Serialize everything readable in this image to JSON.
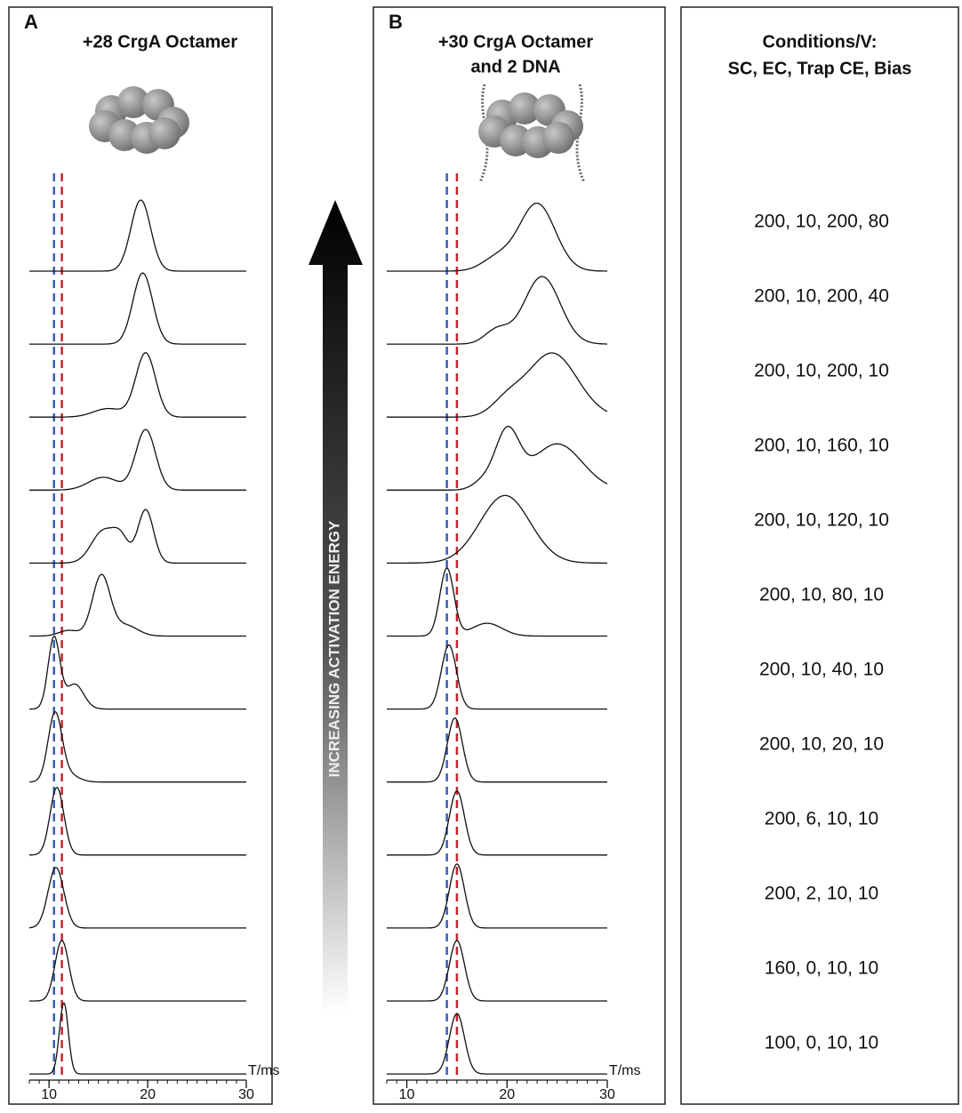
{
  "chart_data": [
    {
      "type": "ridgeline",
      "letter": "A",
      "title": [
        "+28 CrgA Octamer"
      ],
      "x_label": "T/ms",
      "xlim": [
        8,
        30
      ],
      "xticks": [
        10,
        20,
        30
      ],
      "reference_lines": [
        {
          "value": 10.5,
          "color": "#3a5fb0"
        },
        {
          "value": 11.3,
          "color": "#c0282d"
        }
      ],
      "traces": [
        {
          "peaks": [
            [
              19.3,
              1.0,
              1.0
            ]
          ]
        },
        {
          "peaks": [
            [
              19.5,
              1.0,
              1.0
            ]
          ]
        },
        {
          "peaks": [
            [
              19.8,
              0.9,
              1.0
            ],
            [
              16.0,
              0.12,
              1.5
            ]
          ]
        },
        {
          "peaks": [
            [
              19.8,
              0.85,
              1.0
            ],
            [
              15.5,
              0.18,
              1.5
            ]
          ]
        },
        {
          "peaks": [
            [
              15.5,
              0.45,
              1.2
            ],
            [
              17.3,
              0.3,
              0.8
            ],
            [
              19.8,
              0.75,
              0.8
            ]
          ]
        },
        {
          "peaks": [
            [
              15.3,
              0.85,
              0.9
            ],
            [
              17.8,
              0.15,
              1.2
            ],
            [
              12.0,
              0.08,
              1.0
            ]
          ]
        },
        {
          "peaks": [
            [
              10.5,
              1.0,
              0.6
            ],
            [
              12.6,
              0.35,
              0.9
            ]
          ]
        },
        {
          "peaks": [
            [
              10.6,
              0.95,
              0.7
            ],
            [
              12.0,
              0.1,
              1.0
            ]
          ]
        },
        {
          "peaks": [
            [
              10.8,
              0.95,
              0.7
            ]
          ]
        },
        {
          "peaks": [
            [
              10.7,
              0.85,
              0.8
            ]
          ]
        },
        {
          "peaks": [
            [
              11.3,
              0.85,
              0.7
            ]
          ]
        },
        {
          "peaks": [
            [
              11.5,
              1.0,
              0.45
            ]
          ]
        }
      ]
    },
    {
      "type": "ridgeline",
      "letter": "B",
      "title": [
        "+30 CrgA Octamer",
        "and 2 DNA"
      ],
      "x_label": "T/ms",
      "xlim": [
        8,
        30
      ],
      "xticks": [
        10,
        20,
        30
      ],
      "reference_lines": [
        {
          "value": 14.0,
          "color": "#3a5fb0"
        },
        {
          "value": 15.0,
          "color": "#c0282d"
        }
      ],
      "traces": [
        {
          "peaks": [
            [
              23.0,
              0.95,
              1.8
            ],
            [
              19.0,
              0.18,
              1.5
            ]
          ]
        },
        {
          "peaks": [
            [
              23.5,
              0.95,
              1.8
            ],
            [
              19.0,
              0.2,
              1.2
            ]
          ]
        },
        {
          "peaks": [
            [
              24.5,
              0.9,
              2.5
            ],
            [
              20.0,
              0.2,
              1.5
            ]
          ]
        },
        {
          "peaks": [
            [
              20.0,
              0.8,
              1.2
            ],
            [
              25.0,
              0.65,
              2.5
            ],
            [
              17.5,
              0.1,
              1.0
            ]
          ]
        },
        {
          "peaks": [
            [
              19.8,
              0.95,
              2.5
            ]
          ]
        },
        {
          "peaks": [
            [
              14.0,
              0.95,
              0.7
            ],
            [
              18.0,
              0.18,
              1.5
            ]
          ]
        },
        {
          "peaks": [
            [
              14.2,
              0.9,
              0.75
            ]
          ]
        },
        {
          "peaks": [
            [
              14.8,
              0.9,
              0.75
            ]
          ]
        },
        {
          "peaks": [
            [
              15.0,
              0.9,
              0.75
            ]
          ]
        },
        {
          "peaks": [
            [
              15.0,
              0.9,
              0.75
            ]
          ]
        },
        {
          "peaks": [
            [
              15.0,
              0.85,
              0.75
            ]
          ]
        },
        {
          "peaks": [
            [
              15.0,
              0.85,
              0.75
            ]
          ]
        }
      ]
    }
  ],
  "arrow_label": "INCREASING ACTIVATION ENERGY",
  "conditions": {
    "header": [
      "Conditions/V:",
      "SC, EC, Trap CE, Bias"
    ],
    "rows": [
      "200, 10, 200, 80",
      "200, 10, 200, 40",
      "200, 10, 200, 10",
      "200, 10, 160, 10",
      "200, 10, 120, 10",
      "200, 10, 80, 10",
      "200, 10, 40, 10",
      "200, 10, 20, 10",
      "200, 6, 10, 10",
      "200, 2, 10, 10",
      "160, 0, 10, 10",
      "100, 0, 10, 10"
    ]
  }
}
